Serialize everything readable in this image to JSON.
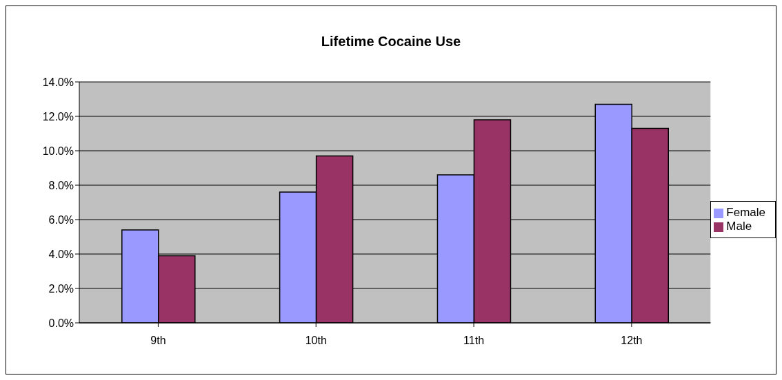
{
  "chart_data": {
    "type": "bar",
    "title": "Lifetime Cocaine Use",
    "categories": [
      "9th",
      "10th",
      "11th",
      "12th"
    ],
    "series": [
      {
        "name": "Female",
        "color": "#9999ff",
        "values": [
          5.4,
          7.6,
          8.6,
          12.7
        ]
      },
      {
        "name": "Male",
        "color": "#993366",
        "values": [
          3.9,
          9.7,
          11.8,
          11.3
        ]
      }
    ],
    "ylim": [
      0,
      14
    ],
    "yticks": [
      {
        "value": 0,
        "label": "0.0%"
      },
      {
        "value": 2,
        "label": "2.0%"
      },
      {
        "value": 4,
        "label": "4.0%"
      },
      {
        "value": 6,
        "label": "6.0%"
      },
      {
        "value": 8,
        "label": "8.0%"
      },
      {
        "value": 10,
        "label": "10.0%"
      },
      {
        "value": 12,
        "label": "12.0%"
      },
      {
        "value": 14,
        "label": "14.0%"
      }
    ],
    "grid": "y",
    "legend": "right"
  }
}
